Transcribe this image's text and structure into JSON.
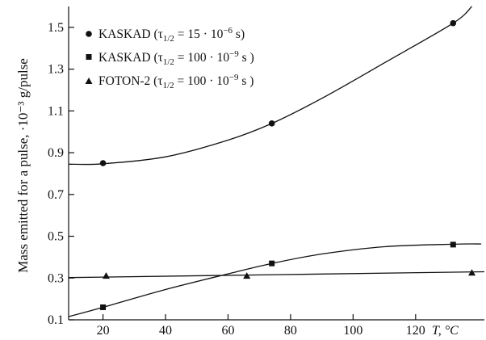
{
  "chart_data": {
    "type": "scatter",
    "ylabel": "Mass emitted for a pulse, ·10⁻³ g/pulse",
    "xlabel": "T, °C",
    "xlim": [
      9,
      142
    ],
    "ylim": [
      0.1,
      1.6
    ],
    "x_ticks": [
      20,
      40,
      60,
      80,
      100,
      120
    ],
    "y_ticks": [
      0.1,
      0.3,
      0.5,
      0.7,
      0.9,
      1.1,
      1.3,
      1.5
    ],
    "x_tick_labels": [
      "20",
      "40",
      "60",
      "80",
      "100",
      "120"
    ],
    "y_tick_labels": [
      "0.1",
      "0.3",
      "0.5",
      "0.7",
      "0.9",
      "1.1",
      "1.3",
      "1.5"
    ],
    "legend_position": "top-left",
    "grid": false,
    "series": [
      {
        "name": "KASKAD (τ1/2 = 15 · 10⁻⁶ s)",
        "marker": "circle",
        "x": [
          20,
          74,
          132
        ],
        "y": [
          0.85,
          1.04,
          1.52
        ],
        "fit": [
          [
            9,
            0.845
          ],
          [
            20,
            0.847
          ],
          [
            40,
            0.88
          ],
          [
            60,
            0.96
          ],
          [
            74,
            1.04
          ],
          [
            90,
            1.16
          ],
          [
            110,
            1.33
          ],
          [
            132,
            1.52
          ],
          [
            138,
            1.6
          ]
        ]
      },
      {
        "name": "KASKAD (τ1/2 = 100 · 10⁻⁹ s)",
        "marker": "square",
        "x": [
          20,
          74,
          132
        ],
        "y": [
          0.16,
          0.37,
          0.46
        ],
        "fit": [
          [
            9,
            0.115
          ],
          [
            20,
            0.16
          ],
          [
            40,
            0.245
          ],
          [
            60,
            0.32
          ],
          [
            74,
            0.37
          ],
          [
            90,
            0.415
          ],
          [
            110,
            0.45
          ],
          [
            132,
            0.462
          ],
          [
            141,
            0.463
          ]
        ]
      },
      {
        "name": "FOTON-2 (τ1/2 = 100 · 10⁻⁹ s )",
        "marker": "triangle",
        "x": [
          21,
          66,
          138
        ],
        "y": [
          0.31,
          0.31,
          0.325
        ],
        "fit": [
          [
            9,
            0.302
          ],
          [
            142,
            0.33
          ]
        ]
      }
    ]
  },
  "legend": [
    {
      "prefix": "KASKAD (τ",
      "sub": "1/2",
      "mid": " = 15 · 10",
      "sup": "−6",
      "suffix": " s)"
    },
    {
      "prefix": "KASKAD (τ",
      "sub": "1/2",
      "mid": " = 100 · 10",
      "sup": "−9",
      "suffix": " s )"
    },
    {
      "prefix": "FOTON-2 (τ",
      "sub": "1/2",
      "mid": " = 100 · 10",
      "sup": "−9",
      "suffix": " s )"
    }
  ],
  "colors": {
    "ink": "#111111",
    "background": "#ffffff"
  }
}
